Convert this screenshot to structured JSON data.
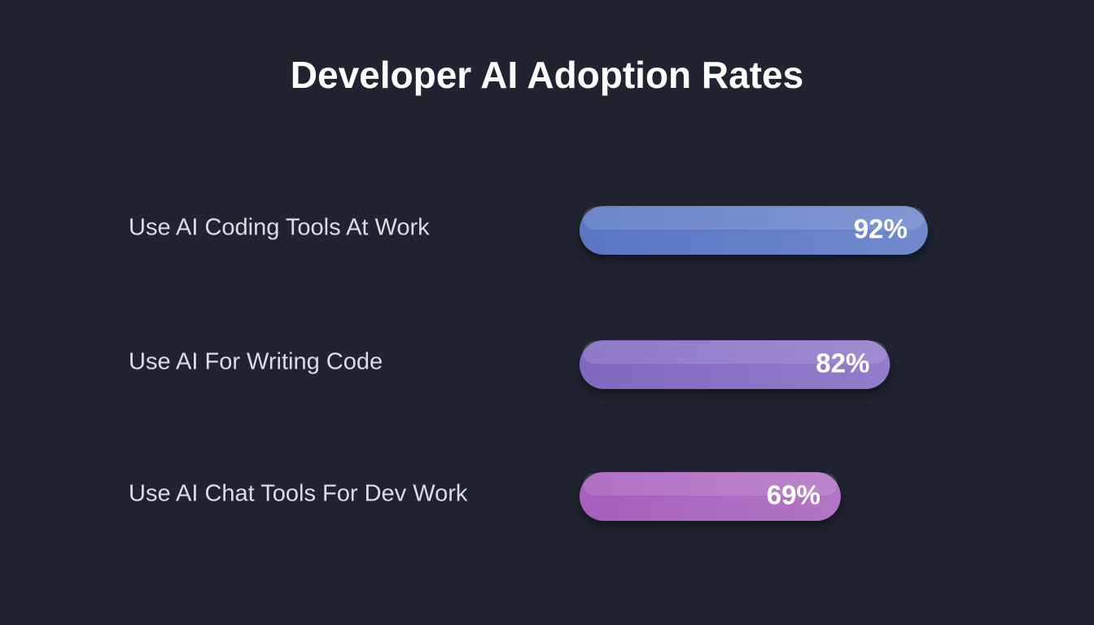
{
  "chart_data": {
    "type": "bar",
    "orientation": "horizontal",
    "title": "Developer AI Adoption Rates",
    "categories": [
      "Use AI Coding Tools At Work",
      "Use AI For Writing Code",
      "Use AI Chat Tools For Dev Work"
    ],
    "values": [
      92,
      82,
      69
    ],
    "value_labels": [
      "92%",
      "82%",
      "69%"
    ],
    "colors": [
      "#5a76c4",
      "#8068c2",
      "#a65fbc"
    ],
    "xlim": [
      0,
      100
    ]
  }
}
